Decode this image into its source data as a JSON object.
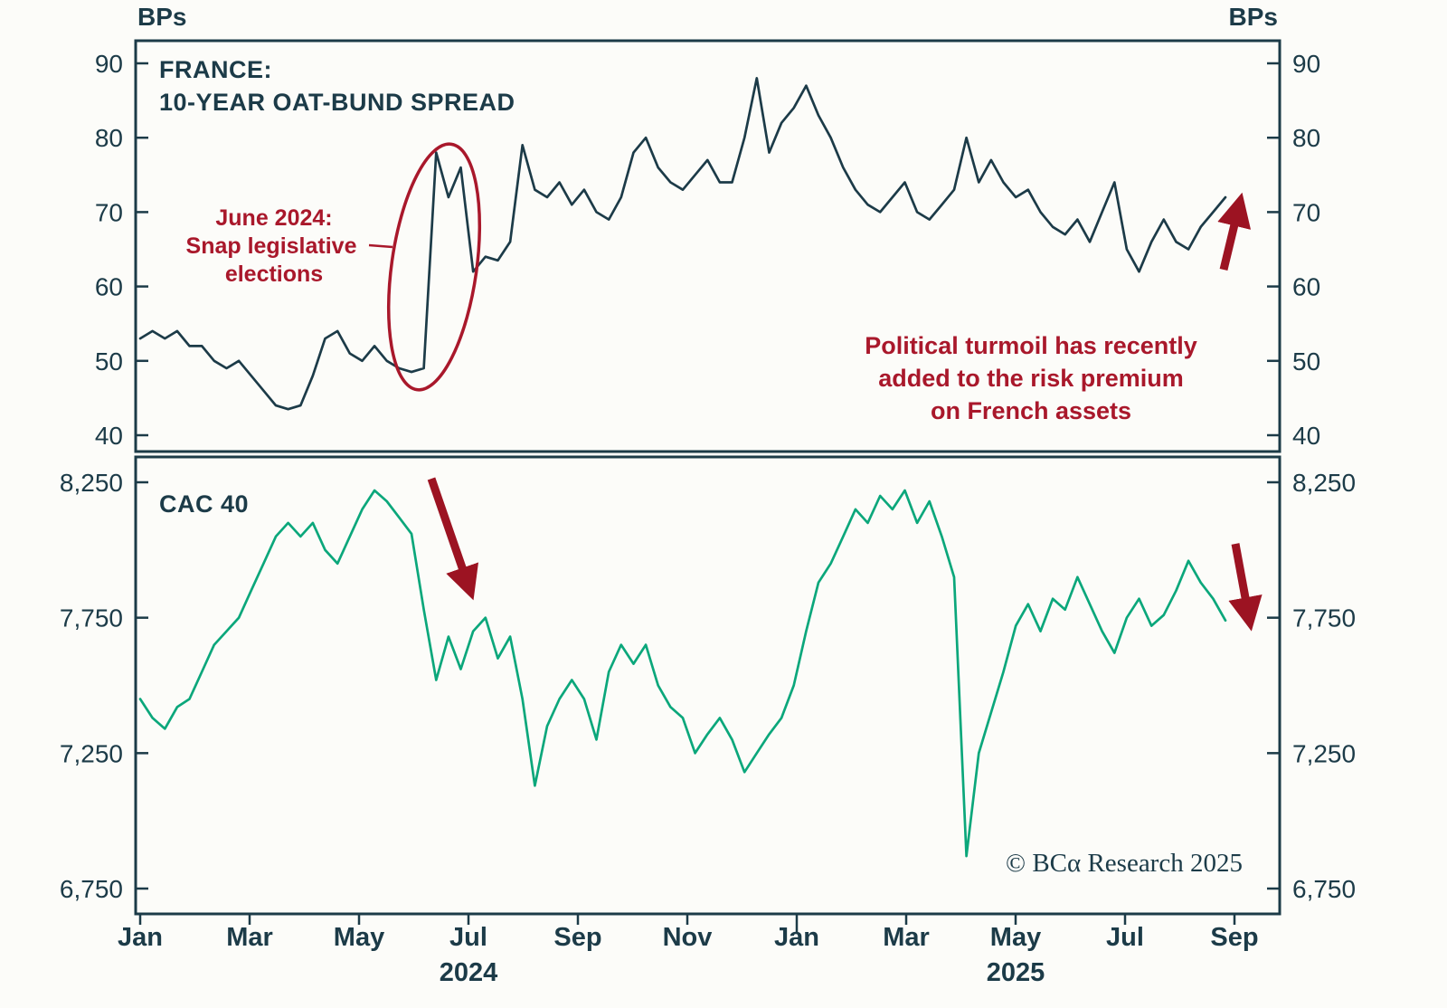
{
  "page": {
    "unit_left": "BPs",
    "unit_right": "BPs",
    "copyright": "© BCα Research 2025"
  },
  "colors": {
    "spread_line": "#1c3b48",
    "cac_line": "#0ba77b",
    "annotation_red": "#a9182b",
    "arrow_red": "#9c1322",
    "axis": "#1c3b48",
    "background": "#fcfcf9"
  },
  "annotations": {
    "election_note": [
      "June 2024:",
      "Snap legislative",
      "elections"
    ],
    "turmoil_note": [
      "Political turmoil has recently",
      "added to the risk premium",
      "on French assets"
    ]
  },
  "x_axis": {
    "tick_labels": [
      "Jan",
      "Mar",
      "May",
      "Jul",
      "Sep",
      "Nov",
      "Jan",
      "Mar",
      "May",
      "Jul",
      "Sep"
    ],
    "year_labels": [
      "2024",
      "2025"
    ],
    "x_start": "Jan 2024",
    "x_end": "Sep 2025"
  },
  "chart_data": [
    {
      "type": "line",
      "panel": "top",
      "series_name": "France 10-year OAT-Bund spread",
      "title_lines": [
        "FRANCE:",
        "10-YEAR OAT-BUND SPREAD"
      ],
      "unit": "BPs",
      "ylim": [
        40,
        90
      ],
      "ytick_values": [
        40,
        50,
        60,
        70,
        80,
        90
      ],
      "ytick_labels": [
        "40",
        "50",
        "60",
        "70",
        "80",
        "90"
      ],
      "x_unit": "approx. weekly points, Jan 2024 - Sep 2025",
      "grid": false,
      "values": [
        53,
        54,
        53,
        54,
        52,
        52,
        50,
        49,
        50,
        48,
        46,
        44,
        43.5,
        44,
        48,
        53,
        54,
        51,
        50,
        52,
        50,
        49,
        48.5,
        49,
        78,
        72,
        76,
        62,
        64,
        63.5,
        66,
        79,
        73,
        72,
        74,
        71,
        73,
        70,
        69,
        72,
        78,
        80,
        76,
        74,
        73,
        75,
        77,
        74,
        74,
        80,
        88,
        78,
        82,
        84,
        87,
        83,
        80,
        76,
        73,
        71,
        70,
        72,
        74,
        70,
        69,
        71,
        73,
        80,
        74,
        77,
        74,
        72,
        73,
        70,
        68,
        67,
        69,
        66,
        70,
        74,
        65,
        62,
        66,
        69,
        66,
        65,
        68,
        70,
        72
      ]
    },
    {
      "type": "line",
      "panel": "bottom",
      "series_name": "CAC 40",
      "title": "CAC 40",
      "ylim": [
        6750,
        8250
      ],
      "ytick_values": [
        6750,
        7250,
        7750,
        8250
      ],
      "ytick_labels": [
        "6,750",
        "7,250",
        "7,750",
        "8,250"
      ],
      "x_unit": "approx. weekly points, Jan 2024 - Sep 2025",
      "grid": false,
      "values": [
        7450,
        7380,
        7340,
        7420,
        7450,
        7550,
        7650,
        7700,
        7750,
        7850,
        7950,
        8050,
        8100,
        8050,
        8100,
        8000,
        7950,
        8050,
        8150,
        8220,
        8180,
        8120,
        8060,
        7780,
        7520,
        7680,
        7560,
        7700,
        7750,
        7600,
        7680,
        7450,
        7130,
        7350,
        7450,
        7520,
        7450,
        7300,
        7550,
        7650,
        7580,
        7650,
        7500,
        7420,
        7380,
        7250,
        7320,
        7380,
        7300,
        7180,
        7250,
        7320,
        7380,
        7500,
        7700,
        7880,
        7950,
        8050,
        8150,
        8100,
        8200,
        8150,
        8220,
        8100,
        8180,
        8050,
        7900,
        6870,
        7250,
        7400,
        7550,
        7720,
        7800,
        7700,
        7820,
        7780,
        7900,
        7800,
        7700,
        7620,
        7750,
        7820,
        7720,
        7760,
        7850,
        7960,
        7880,
        7820,
        7740
      ]
    }
  ]
}
